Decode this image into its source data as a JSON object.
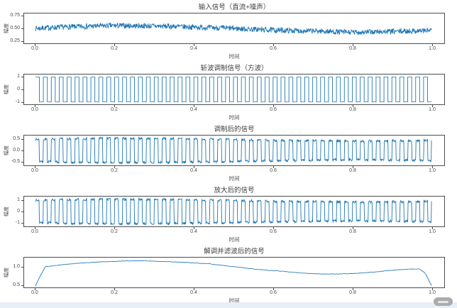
{
  "figure": {
    "background": "#ffffff",
    "line_color": "#1f77b4",
    "spine_color": "#4d4d4d",
    "title_color": "#3c3c3c",
    "tick_color": "#4a4a4a",
    "footer_strip_color": "#e9eff7",
    "watermark_badge_color": "#ababab"
  },
  "chart_data": [
    {
      "type": "line",
      "title": "输入信号（直流+噪声）",
      "xlabel": "时间",
      "ylabel": "幅度",
      "xlim": [
        0.0,
        1.0
      ],
      "ylim": [
        0.2,
        0.8
      ],
      "xtick_values": [
        0.0,
        0.2,
        0.4,
        0.6,
        0.8,
        1.0
      ],
      "xtick_labels": [
        "0.0",
        "0.2",
        "0.4",
        "0.6",
        "0.8",
        "1.0"
      ],
      "ytick_values": [
        0.25,
        0.5,
        0.75
      ],
      "ytick_labels": [
        "0.25",
        "0.50",
        "0.75"
      ],
      "grid": false,
      "legend": "none",
      "series": {
        "kind": "noisy_dc",
        "n": 1100,
        "seed": 7,
        "noise_amp": 0.055,
        "baseline_x": [
          0,
          0.05,
          0.12,
          0.2,
          0.28,
          0.35,
          0.42,
          0.5,
          0.58,
          0.65,
          0.72,
          0.8,
          0.86,
          0.92,
          1
        ],
        "baseline_y": [
          0.5,
          0.52,
          0.54,
          0.555,
          0.55,
          0.54,
          0.52,
          0.5,
          0.47,
          0.455,
          0.445,
          0.42,
          0.43,
          0.44,
          0.46
        ]
      }
    },
    {
      "type": "line",
      "title": "斩波调制信号（方波）",
      "xlabel": "时间",
      "ylabel": "幅度",
      "xlim": [
        0.0,
        1.0
      ],
      "ylim": [
        -1.2,
        1.2
      ],
      "xtick_values": [
        0.0,
        0.2,
        0.4,
        0.6,
        0.8,
        1.0
      ],
      "xtick_labels": [
        "0.0",
        "0.2",
        "0.4",
        "0.6",
        "0.8",
        "1.0"
      ],
      "ytick_values": [
        -1,
        0,
        1
      ],
      "ytick_labels": [
        "-1",
        "0",
        "1"
      ],
      "grid": false,
      "legend": "none",
      "series": {
        "kind": "square",
        "freq_hz": 50,
        "amplitude": 1
      }
    },
    {
      "type": "line",
      "title": "调制后的信号",
      "xlabel": "时间",
      "ylabel": "幅度",
      "xlim": [
        0.0,
        1.0
      ],
      "ylim": [
        -0.68,
        0.68
      ],
      "xtick_values": [
        0.0,
        0.2,
        0.4,
        0.6,
        0.8,
        1.0
      ],
      "xtick_labels": [
        "0.0",
        "0.2",
        "0.4",
        "0.6",
        "0.8",
        "1.0"
      ],
      "ytick_values": [
        -0.5,
        0.0,
        0.5
      ],
      "ytick_labels": [
        "-0.5",
        "0.0",
        "0.5"
      ],
      "grid": false,
      "legend": "none",
      "series": {
        "kind": "chopped",
        "freq_hz": 50,
        "gain": 1
      }
    },
    {
      "type": "line",
      "title": "放大后的信号",
      "xlabel": "时间",
      "ylabel": "幅度",
      "xlim": [
        0.0,
        1.0
      ],
      "ylim": [
        -1.35,
        1.35
      ],
      "xtick_values": [
        0.0,
        0.2,
        0.4,
        0.6,
        0.8,
        1.0
      ],
      "xtick_labels": [
        "0.0",
        "0.2",
        "0.4",
        "0.6",
        "0.8",
        "1.0"
      ],
      "ytick_values": [
        -1,
        0,
        1
      ],
      "ytick_labels": [
        "-1",
        "0",
        "1"
      ],
      "grid": false,
      "legend": "none",
      "series": {
        "kind": "chopped",
        "freq_hz": 50,
        "gain": 2
      }
    },
    {
      "type": "line",
      "title": "解调并滤波后的信号",
      "xlabel": "时间",
      "ylabel": "幅度",
      "xlim": [
        0.0,
        1.0
      ],
      "ylim": [
        0.42,
        1.28
      ],
      "xtick_values": [
        0.0,
        0.2,
        0.4,
        0.6,
        0.8,
        1.0
      ],
      "xtick_labels": [
        "0.0",
        "0.2",
        "0.4",
        "0.6",
        "0.8",
        "1.0"
      ],
      "ytick_values": [
        0.5,
        1.0
      ],
      "ytick_labels": [
        "0.5",
        "1.0"
      ],
      "grid": false,
      "legend": "none",
      "series": {
        "kind": "points",
        "n": 350,
        "noise_amp": 0.006,
        "x": [
          0,
          0.012,
          0.025,
          0.05,
          0.08,
          0.11,
          0.14,
          0.17,
          0.2,
          0.23,
          0.26,
          0.29,
          0.32,
          0.35,
          0.38,
          0.41,
          0.44,
          0.47,
          0.5,
          0.53,
          0.56,
          0.59,
          0.62,
          0.65,
          0.68,
          0.71,
          0.74,
          0.77,
          0.8,
          0.83,
          0.86,
          0.89,
          0.92,
          0.95,
          0.97,
          0.985,
          1.0
        ],
        "y": [
          0.46,
          0.75,
          1.02,
          1.05,
          1.09,
          1.12,
          1.14,
          1.16,
          1.17,
          1.185,
          1.19,
          1.18,
          1.17,
          1.155,
          1.14,
          1.12,
          1.1,
          1.06,
          1.02,
          0.98,
          0.94,
          0.91,
          0.89,
          0.86,
          0.83,
          0.815,
          0.805,
          0.81,
          0.82,
          0.84,
          0.87,
          0.905,
          0.93,
          0.95,
          0.955,
          0.82,
          0.47
        ]
      }
    }
  ]
}
